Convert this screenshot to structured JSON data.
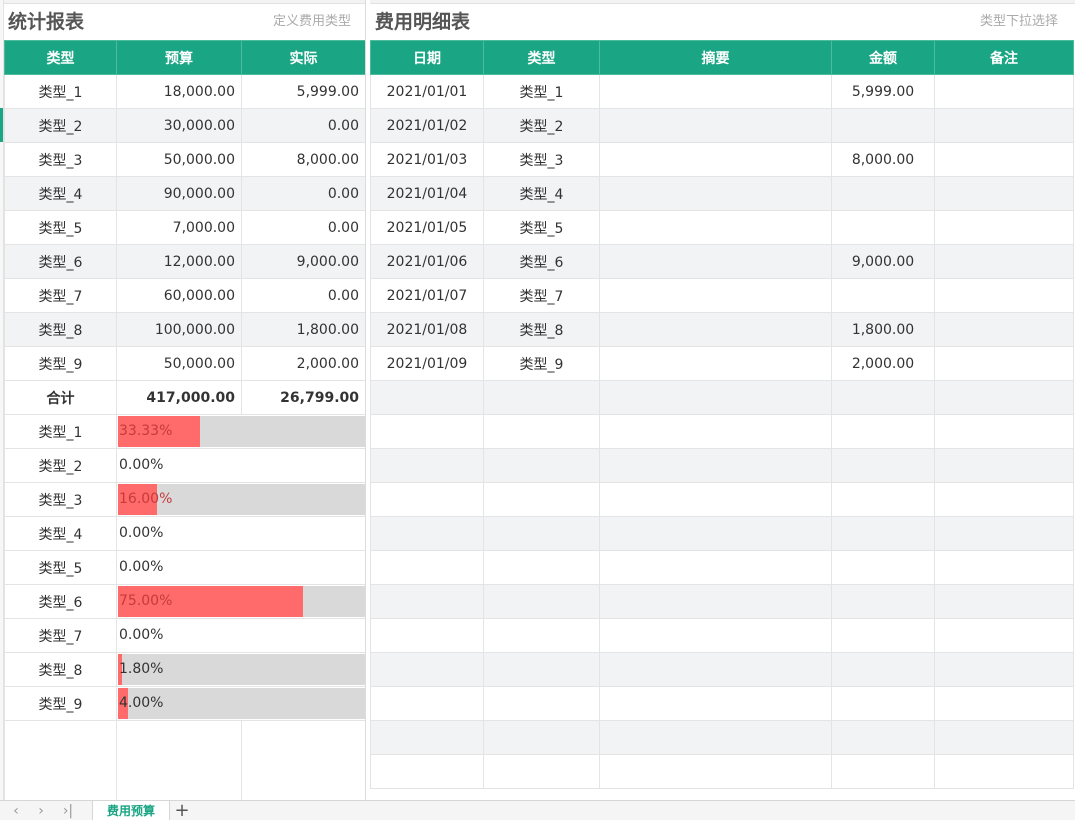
{
  "stats": {
    "title": "统计报表",
    "hint": "定义费用类型",
    "headers": [
      "类型",
      "预算",
      "实际"
    ],
    "rows": [
      {
        "type": "类型_1",
        "budget": "18,000.00",
        "actual": "5,999.00"
      },
      {
        "type": "类型_2",
        "budget": "30,000.00",
        "actual": "0.00"
      },
      {
        "type": "类型_3",
        "budget": "50,000.00",
        "actual": "8,000.00"
      },
      {
        "type": "类型_4",
        "budget": "90,000.00",
        "actual": "0.00"
      },
      {
        "type": "类型_5",
        "budget": "7,000.00",
        "actual": "0.00"
      },
      {
        "type": "类型_6",
        "budget": "12,000.00",
        "actual": "9,000.00"
      },
      {
        "type": "类型_7",
        "budget": "60,000.00",
        "actual": "0.00"
      },
      {
        "type": "类型_8",
        "budget": "100,000.00",
        "actual": "1,800.00"
      },
      {
        "type": "类型_9",
        "budget": "50,000.00",
        "actual": "2,000.00"
      }
    ],
    "total": {
      "label": "合计",
      "budget": "417,000.00",
      "actual": "26,799.00"
    },
    "usage": [
      {
        "type": "类型_1",
        "label": "33.33%",
        "value": 0.3333,
        "bar": true
      },
      {
        "type": "类型_2",
        "label": "0.00%",
        "value": 0,
        "bar": false
      },
      {
        "type": "类型_3",
        "label": "16.00%",
        "value": 0.16,
        "bar": true
      },
      {
        "type": "类型_4",
        "label": "0.00%",
        "value": 0,
        "bar": false
      },
      {
        "type": "类型_5",
        "label": "0.00%",
        "value": 0,
        "bar": false
      },
      {
        "type": "类型_6",
        "label": "75.00%",
        "value": 0.75,
        "bar": true
      },
      {
        "type": "类型_7",
        "label": "0.00%",
        "value": 0,
        "bar": false
      },
      {
        "type": "类型_8",
        "label": "1.80%",
        "value": 0.018,
        "bar": true
      },
      {
        "type": "类型_9",
        "label": "4.00%",
        "value": 0.04,
        "bar": true
      }
    ]
  },
  "detail": {
    "title": "费用明细表",
    "hint": "类型下拉选择",
    "headers": [
      "日期",
      "类型",
      "摘要",
      "金额",
      "备注"
    ],
    "rows": [
      {
        "date": "2021/01/01",
        "type": "类型_1",
        "summary": "",
        "amount": "5,999.00",
        "note": ""
      },
      {
        "date": "2021/01/02",
        "type": "类型_2",
        "summary": "",
        "amount": "",
        "note": ""
      },
      {
        "date": "2021/01/03",
        "type": "类型_3",
        "summary": "",
        "amount": "8,000.00",
        "note": ""
      },
      {
        "date": "2021/01/04",
        "type": "类型_4",
        "summary": "",
        "amount": "",
        "note": ""
      },
      {
        "date": "2021/01/05",
        "type": "类型_5",
        "summary": "",
        "amount": "",
        "note": ""
      },
      {
        "date": "2021/01/06",
        "type": "类型_6",
        "summary": "",
        "amount": "9,000.00",
        "note": ""
      },
      {
        "date": "2021/01/07",
        "type": "类型_7",
        "summary": "",
        "amount": "",
        "note": ""
      },
      {
        "date": "2021/01/08",
        "type": "类型_8",
        "summary": "",
        "amount": "1,800.00",
        "note": ""
      },
      {
        "date": "2021/01/09",
        "type": "类型_9",
        "summary": "",
        "amount": "2,000.00",
        "note": ""
      }
    ]
  },
  "sheet_tabs": {
    "active": "费用预算",
    "nav_first": "‹",
    "nav_prev": "›",
    "nav_last": "›|",
    "add": "+"
  },
  "colors": {
    "header_bg": "#1aa584",
    "bar_fill": "#ff6a6a",
    "bar_track": "#d9d9d9",
    "alt_row": "#f2f3f5"
  }
}
